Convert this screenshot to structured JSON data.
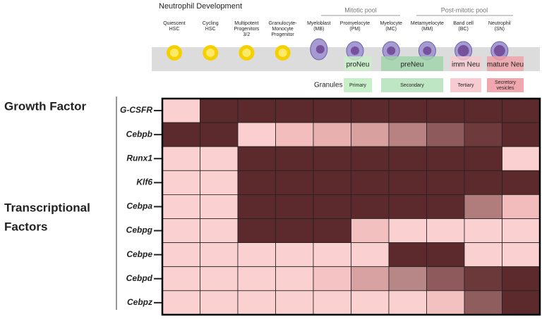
{
  "title": "Neutrophil Development",
  "pools": [
    "Mitotic pool",
    "Post-mitotic pool"
  ],
  "stages": [
    [
      "Quiescent",
      "HSC"
    ],
    [
      "Cycling",
      "HSC"
    ],
    [
      "Multipotent",
      "Progenitors",
      "3/2"
    ],
    [
      "Granulocyte-",
      "Monocyte",
      "Progenitor"
    ],
    [
      "Myeloblast",
      "(MB)"
    ],
    [
      "Promyelocyte",
      "(PM)"
    ],
    [
      "Myelocyte",
      "(MC)"
    ],
    [
      "Metamyelocyte",
      "(MM)"
    ],
    [
      "Band cell",
      "(BC)"
    ],
    [
      "Neutrophil",
      "(SN)"
    ]
  ],
  "subsets": [
    "proNeu",
    "preNeu",
    "imm Neu",
    "mature Neu"
  ],
  "granules": {
    "label": "Granules",
    "types": [
      [
        "Primary"
      ],
      [
        "Secondary"
      ],
      [
        "Tertiary"
      ],
      [
        "Secretory",
        "vesicles"
      ]
    ]
  },
  "groups": [
    [
      "Growth Factor"
    ],
    [
      "Transcriptional",
      "Factors"
    ]
  ],
  "heatmap": {
    "rows": [
      {
        "gene": "G-CSFR",
        "colors": [
          "#fbd0d0",
          "#5c2a2c",
          "#5c2a2c",
          "#5c2a2c",
          "#5c2a2c",
          "#5c2a2c",
          "#5c2a2c",
          "#5c2a2c",
          "#5c2a2c",
          "#5c2a2c"
        ]
      },
      {
        "gene": "Cebpb",
        "colors": [
          "#5c2a2c",
          "#5c2a2c",
          "#fbcfcf",
          "#f4bdbd",
          "#e9b0b0",
          "#d9a0a0",
          "#b98282",
          "#8f5a5c",
          "#6e3a3c",
          "#5c2a2c"
        ]
      },
      {
        "gene": "Runx1",
        "colors": [
          "#fbd0d0",
          "#fbd0d0",
          "#5c2a2c",
          "#5c2a2c",
          "#5c2a2c",
          "#5c2a2c",
          "#5c2a2c",
          "#5c2a2c",
          "#5c2a2c",
          "#fbd0d0"
        ]
      },
      {
        "gene": "Klf6",
        "colors": [
          "#fbd0d0",
          "#fbd0d0",
          "#5c2a2c",
          "#5c2a2c",
          "#5c2a2c",
          "#5c2a2c",
          "#5c2a2c",
          "#5c2a2c",
          "#5c2a2c",
          "#5c2a2c"
        ]
      },
      {
        "gene": "Cebpa",
        "colors": [
          "#fbd0d0",
          "#fbd0d0",
          "#5c2a2c",
          "#5c2a2c",
          "#5c2a2c",
          "#5c2a2c",
          "#5c2a2c",
          "#5c2a2c",
          "#b07d7c",
          "#f1bcbb"
        ]
      },
      {
        "gene": "Cebpg",
        "colors": [
          "#fbd0d0",
          "#fbd0d0",
          "#5c2a2c",
          "#5c2a2c",
          "#5c2a2c",
          "#f3c0c0",
          "#fbd0d0",
          "#fbd0d0",
          "#fbd0d0",
          "#fbd0d0"
        ]
      },
      {
        "gene": "Cebpe",
        "colors": [
          "#fbd0d0",
          "#fbd0d0",
          "#fbd0d0",
          "#fbd0d0",
          "#fbd0d0",
          "#fbd0d0",
          "#5c2a2c",
          "#5c2a2c",
          "#fbd0d0",
          "#fbd0d0"
        ]
      },
      {
        "gene": "Cebpd",
        "colors": [
          "#fbd0d0",
          "#fbd0d0",
          "#fbd0d0",
          "#fbd0d0",
          "#f5c3c3",
          "#d9a2a2",
          "#b78787",
          "#8e5a5b",
          "#6c393b",
          "#5c2a2c"
        ]
      },
      {
        "gene": "Cebpz",
        "colors": [
          "#fbd0d0",
          "#fbd0d0",
          "#fbd0d0",
          "#fbd0d0",
          "#fbd0d0",
          "#fbd0d0",
          "#fbd0d0",
          "#f4c1c1",
          "#8f5d5e",
          "#5c2a2c"
        ]
      }
    ]
  }
}
